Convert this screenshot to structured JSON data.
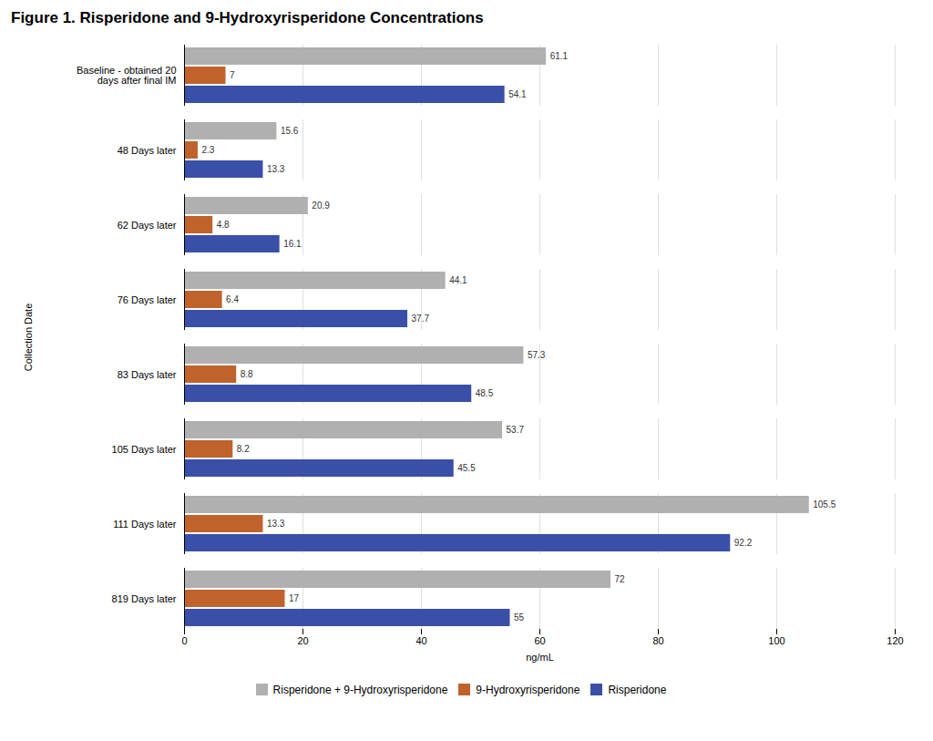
{
  "chart_data": {
    "type": "bar",
    "orientation": "horizontal",
    "title": "Figure 1. Risperidone and 9-Hydroxyrisperidone Concentrations",
    "categories": [
      "Baseline - obtained 20\ndays after final IM",
      "48 Days later",
      "62 Days later",
      "76 Days later",
      "83 Days later",
      "105 Days later",
      "111 Days later",
      "819 Days later"
    ],
    "series": [
      {
        "name": "Risperidone + 9-Hydroxyrisperidone",
        "color": "#B0B0B0",
        "values": [
          61.1,
          15.6,
          20.9,
          44.1,
          57.3,
          53.7,
          105.5,
          72
        ]
      },
      {
        "name": "9-Hydroxyrisperidone",
        "color": "#C0622B",
        "values": [
          7,
          2.3,
          4.8,
          6.4,
          8.8,
          8.2,
          13.3,
          17
        ]
      },
      {
        "name": "Risperidone",
        "color": "#3A4FA8",
        "values": [
          54.1,
          13.3,
          16.1,
          37.7,
          48.5,
          45.5,
          92.2,
          55
        ]
      }
    ],
    "xlabel": "ng/mL",
    "ylabel": "Collection Date",
    "xlim": [
      0,
      120
    ],
    "xticks": [
      0,
      20,
      40,
      60,
      80,
      100,
      120
    ],
    "grid": true,
    "data_labels": true,
    "legend": "bottom"
  }
}
